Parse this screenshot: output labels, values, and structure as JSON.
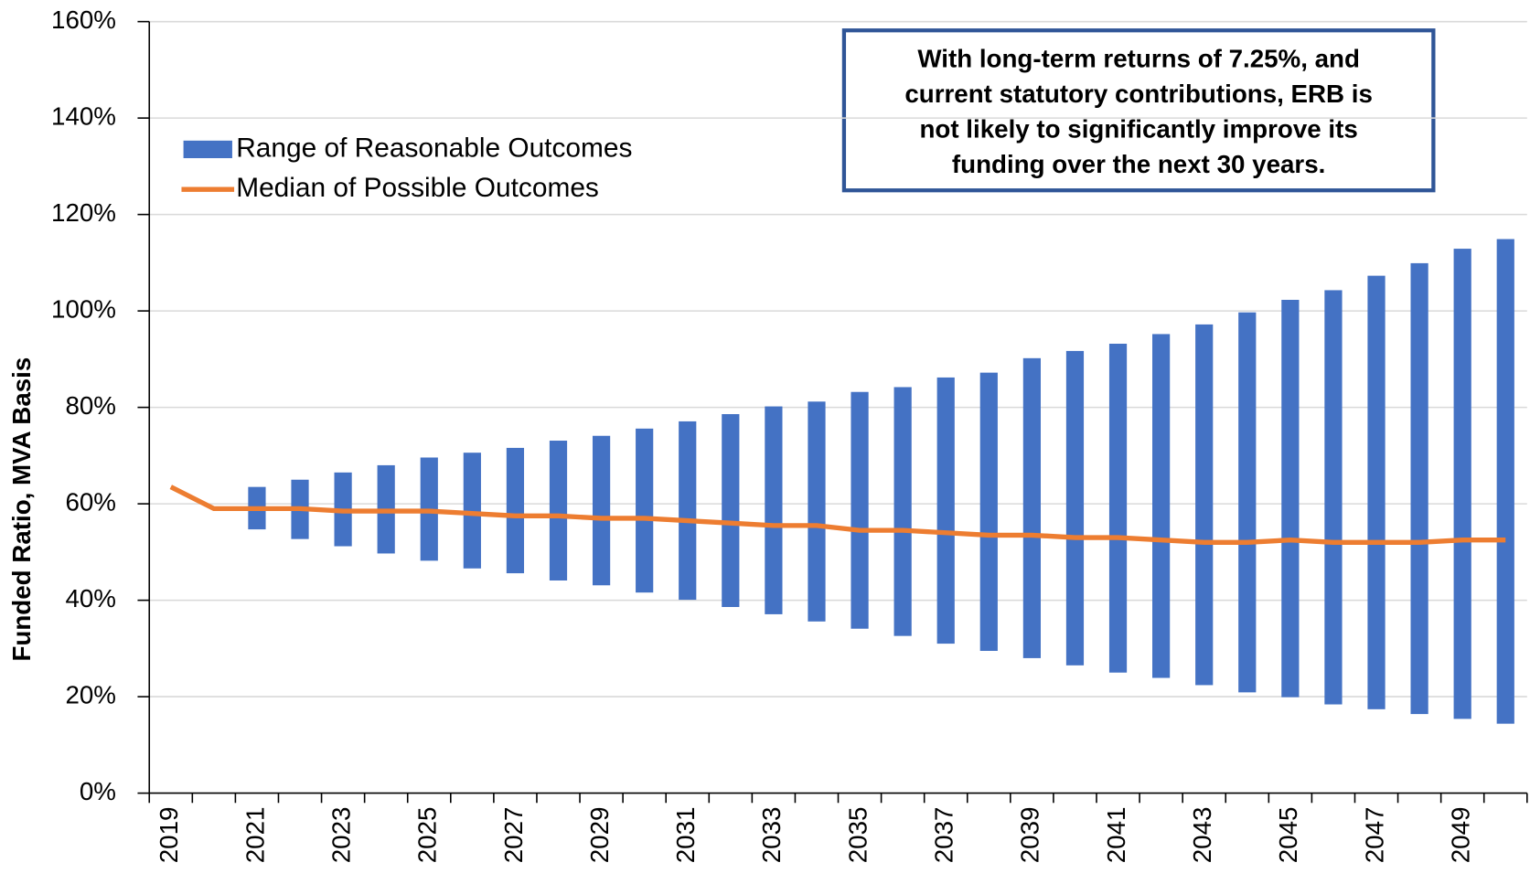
{
  "chart_data": {
    "type": "range-line",
    "y_label": "Funded Ratio, MVA Basis",
    "annotation": [
      "With long-term returns of 7.25%, and",
      "current statutory contributions, ERB is",
      "not likely to significantly improve its",
      "funding over the next 30 years."
    ],
    "categories": [
      "2019",
      null,
      "2021",
      null,
      "2023",
      null,
      "2025",
      null,
      "2027",
      null,
      "2029",
      null,
      "2031",
      null,
      "2033",
      null,
      "2035",
      null,
      "2037",
      null,
      "2039",
      null,
      "2041",
      null,
      "2043",
      null,
      "2045",
      null,
      "2047",
      null,
      "2049",
      null
    ],
    "series": [
      {
        "name": "Range of Reasonable Outcomes",
        "color": "#4472c4",
        "type": "range",
        "low": [
          null,
          null,
          54.7,
          52.7,
          51.2,
          49.7,
          48.2,
          46.6,
          45.6,
          44.1,
          43.1,
          41.6,
          40.1,
          38.6,
          37.1,
          35.6,
          34.1,
          32.6,
          31.0,
          29.5,
          28.0,
          26.5,
          25.0,
          23.9,
          22.4,
          20.9,
          19.9,
          18.4,
          17.4,
          16.4,
          15.4,
          14.4
        ],
        "high": [
          null,
          null,
          63.5,
          65,
          66.5,
          68,
          69.6,
          70.6,
          71.6,
          73.1,
          74.1,
          75.6,
          77.1,
          78.6,
          80.2,
          81.2,
          83.2,
          84.2,
          86.2,
          87.2,
          90.2,
          91.7,
          93.2,
          95.2,
          97.2,
          99.7,
          102.3,
          104.3,
          107.3,
          109.9,
          112.9,
          114.9
        ]
      },
      {
        "name": "Median of Possible Outcomes",
        "color": "#ed7d31",
        "type": "line",
        "values": [
          63.5,
          59,
          59,
          59,
          58.5,
          58.5,
          58.5,
          58,
          57.5,
          57.5,
          57,
          57,
          56.5,
          56,
          55.5,
          55.5,
          54.5,
          54.5,
          54,
          53.5,
          53.5,
          53,
          53,
          52.5,
          52,
          52,
          52.5,
          52,
          52,
          52,
          52.5,
          52.5
        ]
      }
    ],
    "ylim": [
      0,
      160
    ],
    "yticks": [
      {
        "value": 0,
        "label": "0%"
      },
      {
        "value": 20,
        "label": "20%"
      },
      {
        "value": 40,
        "label": "40%"
      },
      {
        "value": 60,
        "label": "60%"
      },
      {
        "value": 80,
        "label": "80%"
      },
      {
        "value": 100,
        "label": "100%"
      },
      {
        "value": 120,
        "label": "120%"
      },
      {
        "value": 140,
        "label": "140%"
      },
      {
        "value": 160,
        "label": "160%"
      }
    ],
    "grid": true
  }
}
